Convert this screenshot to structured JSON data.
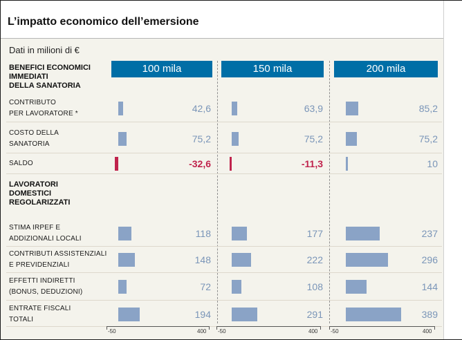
{
  "title": "L’impatto economico dell’emersione",
  "subtitle": "Dati in milioni di €",
  "chart_data": {
    "type": "bar",
    "orientation": "horizontal",
    "unit": "milioni di €",
    "scenarios": [
      "100 mila",
      "150 mila",
      "200 mila"
    ],
    "xlim": [
      -50,
      400
    ],
    "axis_ticks": [
      "-50",
      "400"
    ],
    "sections": [
      {
        "label": "BENEFICI ECONOMICI IMMEDIATI DELLA SANATORIA",
        "label_lines": [
          "BENEFICI ECONOMICI",
          "IMMEDIATI",
          "DELLA SANATORIA"
        ],
        "rows": [
          {
            "label_lines": [
              "CONTRIBUTO",
              "PER LAVORATORE *"
            ],
            "values": [
              42.6,
              63.9,
              85.2
            ],
            "labels": [
              "42,6",
              "63,9",
              "85,2"
            ]
          },
          {
            "label_lines": [
              "COSTO DELLA",
              "SANATORIA"
            ],
            "values": [
              75.2,
              75.2,
              75.2
            ],
            "labels": [
              "75,2",
              "75,2",
              "75,2"
            ]
          },
          {
            "label_lines": [
              "SALDO"
            ],
            "values": [
              -32.6,
              -11.3,
              10
            ],
            "labels": [
              "-32,6",
              "-11,3",
              "10"
            ]
          }
        ]
      },
      {
        "label": "LAVORATORI DOMESTICI REGOLARIZZATI",
        "label_lines": [
          "LAVORATORI",
          "DOMESTICI",
          "REGOLARIZZATI"
        ],
        "rows": [
          {
            "label_lines": [
              "STIMA IRPEF E",
              "ADDIZIONALI LOCALI"
            ],
            "values": [
              118,
              177,
              237
            ],
            "labels": [
              "118",
              "177",
              "237"
            ]
          },
          {
            "label_lines": [
              "CONTRIBUTI ASSISTENZIALI",
              "E PREVIDENZIALI"
            ],
            "values": [
              148,
              222,
              296
            ],
            "labels": [
              "148",
              "222",
              "296"
            ]
          },
          {
            "label_lines": [
              "EFFETTI INDIRETTI",
              "(BONUS, DEDUZIONI)"
            ],
            "values": [
              72,
              108,
              144
            ],
            "labels": [
              "72",
              "108",
              "144"
            ]
          },
          {
            "label_lines": [
              "ENTRATE FISCALI",
              "TOTALI"
            ],
            "values": [
              194,
              291,
              389
            ],
            "labels": [
              "194",
              "291",
              "389"
            ]
          }
        ]
      }
    ],
    "colors": {
      "positive": "#8aa3c6",
      "negative": "#c0234d",
      "header": "#006ea6"
    }
  }
}
